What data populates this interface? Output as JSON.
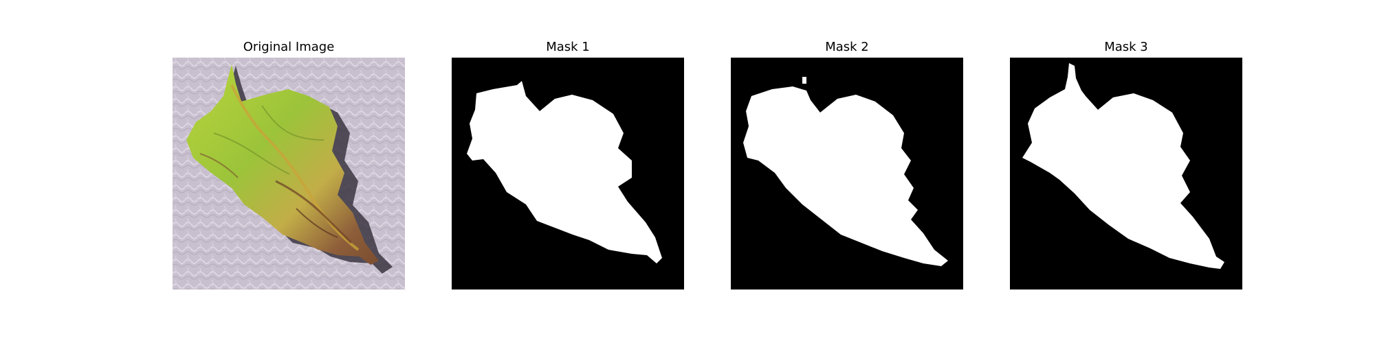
{
  "colors": {
    "background": "#ffffff",
    "mask_background": "#000000",
    "mask_foreground": "#ffffff",
    "photo_background": "#c9c0cf",
    "leaf_green": "#9bc43a",
    "leaf_yellow": "#c6b24a",
    "leaf_brown": "#8a5a3a",
    "shadow": "#3a3540"
  },
  "panels": [
    {
      "title": "Original Image",
      "kind": "photo"
    },
    {
      "title": "Mask 1",
      "kind": "mask"
    },
    {
      "title": "Mask 2",
      "kind": "mask"
    },
    {
      "title": "Mask 3",
      "kind": "mask"
    }
  ]
}
